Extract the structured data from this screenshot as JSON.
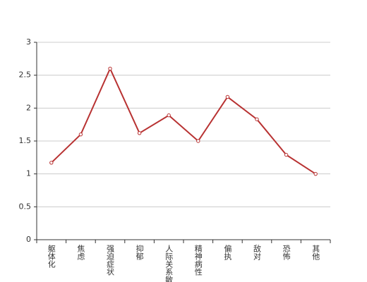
{
  "chart_data": {
    "type": "line",
    "categories": [
      "躯体化",
      "焦虑",
      "强迫症状",
      "抑郁",
      "人际关系敏感",
      "精神病性",
      "偏执",
      "敌对",
      "恐怖",
      "其他"
    ],
    "values": [
      1.17,
      1.6,
      2.6,
      1.62,
      1.89,
      1.5,
      2.17,
      1.83,
      1.29,
      1.0
    ],
    "color": "#b83232",
    "ylim": [
      0,
      3
    ],
    "yticks": [
      0,
      0.5,
      1,
      1.5,
      2,
      2.5,
      3
    ],
    "grid": true
  }
}
